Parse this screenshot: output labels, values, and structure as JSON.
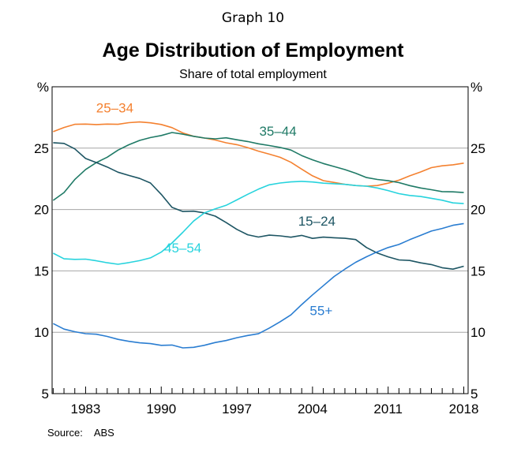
{
  "header": {
    "graph_number": "Graph 10",
    "title": "Age Distribution of Employment",
    "subtitle": "Share of total employment"
  },
  "source": {
    "label": "Source:",
    "value": "ABS"
  },
  "chart_data": {
    "type": "line",
    "title": "Age Distribution of Employment",
    "subtitle": "Share of total employment",
    "xlabel": "",
    "ylabel": "%",
    "y2label": "%",
    "xlim": [
      1979.9,
      2018.4
    ],
    "ylim": [
      5,
      30
    ],
    "x_ticks": [
      1983,
      1990,
      1997,
      2004,
      2011,
      2018
    ],
    "x_tick_labels": [
      "1983",
      "1990",
      "1997",
      "2004",
      "2011",
      "2018"
    ],
    "y_ticks": [
      5,
      10,
      15,
      20,
      25
    ],
    "y_tick_labels": [
      "5",
      "10",
      "15",
      "20",
      "25"
    ],
    "grid": true,
    "colors": {
      "25-34": "#f48130",
      "35-44": "#1f7a66",
      "15-24": "#1d5563",
      "45-54": "#27d3dd",
      "55+": "#2a7dd1"
    },
    "series": [
      {
        "name": "25–34",
        "x": [
          1980,
          1981,
          1982,
          1983,
          1984,
          1985,
          1986,
          1987,
          1988,
          1989,
          1990,
          1991,
          1992,
          1993,
          1994,
          1995,
          1996,
          1997,
          1998,
          1999,
          2000,
          2001,
          2002,
          2003,
          2004,
          2005,
          2006,
          2007,
          2008,
          2009,
          2010,
          2011,
          2012,
          2013,
          2014,
          2015,
          2016,
          2017,
          2018
        ],
        "values": [
          26.4,
          26.7,
          26.9,
          26.9,
          26.9,
          27.0,
          27.0,
          27.1,
          27.1,
          27.0,
          26.9,
          26.7,
          26.3,
          26.0,
          25.8,
          25.6,
          25.4,
          25.3,
          25.1,
          24.8,
          24.5,
          24.2,
          23.8,
          23.3,
          22.8,
          22.4,
          22.2,
          22.0,
          21.9,
          21.9,
          22.0,
          22.2,
          22.4,
          22.7,
          23.0,
          23.4,
          23.6,
          23.7,
          23.8
        ]
      },
      {
        "name": "35–44",
        "x": [
          1980,
          1981,
          1982,
          1983,
          1984,
          1985,
          1986,
          1987,
          1988,
          1989,
          1990,
          1991,
          1992,
          1993,
          1994,
          1995,
          1996,
          1997,
          1998,
          1999,
          2000,
          2001,
          2002,
          2003,
          2004,
          2005,
          2006,
          2007,
          2008,
          2009,
          2010,
          2011,
          2012,
          2013,
          2014,
          2015,
          2016,
          2017,
          2018
        ],
        "values": [
          20.8,
          21.4,
          22.4,
          23.2,
          23.8,
          24.3,
          24.9,
          25.3,
          25.6,
          25.8,
          26.0,
          26.3,
          26.2,
          26.0,
          25.8,
          25.7,
          25.8,
          25.7,
          25.6,
          25.4,
          25.2,
          25.0,
          24.8,
          24.4,
          24.1,
          23.8,
          23.5,
          23.2,
          22.9,
          22.6,
          22.5,
          22.4,
          22.2,
          21.9,
          21.7,
          21.6,
          21.5,
          21.5,
          21.4
        ]
      },
      {
        "name": "15–24",
        "x": [
          1980,
          1981,
          1982,
          1983,
          1984,
          1985,
          1986,
          1987,
          1988,
          1989,
          1990,
          1991,
          1992,
          1993,
          1994,
          1995,
          1996,
          1997,
          1998,
          1999,
          2000,
          2001,
          2002,
          2003,
          2004,
          2005,
          2006,
          2007,
          2008,
          2009,
          2010,
          2011,
          2012,
          2013,
          2014,
          2015,
          2016,
          2017,
          2018
        ],
        "values": [
          25.5,
          25.4,
          24.9,
          24.1,
          23.8,
          23.5,
          23.1,
          22.8,
          22.5,
          22.1,
          21.2,
          20.2,
          19.9,
          19.9,
          19.7,
          19.4,
          18.9,
          18.4,
          18.0,
          17.8,
          17.9,
          17.8,
          17.7,
          17.9,
          17.7,
          17.8,
          17.7,
          17.6,
          17.5,
          16.9,
          16.5,
          16.2,
          15.9,
          15.8,
          15.6,
          15.5,
          15.3,
          15.2,
          15.4
        ]
      },
      {
        "name": "45–54",
        "x": [
          1980,
          1981,
          1982,
          1983,
          1984,
          1985,
          1986,
          1987,
          1988,
          1989,
          1990,
          1991,
          1992,
          1993,
          1994,
          1995,
          1996,
          1997,
          1998,
          1999,
          2000,
          2001,
          2002,
          2003,
          2004,
          2005,
          2006,
          2007,
          2008,
          2009,
          2010,
          2011,
          2012,
          2013,
          2014,
          2015,
          2016,
          2017,
          2018
        ],
        "values": [
          16.5,
          16.0,
          15.9,
          15.9,
          15.8,
          15.7,
          15.6,
          15.7,
          15.8,
          16.0,
          16.5,
          17.3,
          18.2,
          19.1,
          19.7,
          20.0,
          20.3,
          20.8,
          21.3,
          21.7,
          22.0,
          22.1,
          22.2,
          22.3,
          22.3,
          22.2,
          22.1,
          22.0,
          21.9,
          21.9,
          21.8,
          21.6,
          21.3,
          21.1,
          21.0,
          20.9,
          20.8,
          20.6,
          20.5
        ]
      },
      {
        "name": "55+",
        "x": [
          1980,
          1981,
          1982,
          1983,
          1984,
          1985,
          1986,
          1987,
          1988,
          1989,
          1990,
          1991,
          1992,
          1993,
          1994,
          1995,
          1996,
          1997,
          1998,
          1999,
          2000,
          2001,
          2002,
          2003,
          2004,
          2005,
          2006,
          2007,
          2008,
          2009,
          2010,
          2011,
          2012,
          2013,
          2014,
          2015,
          2016,
          2017,
          2018
        ],
        "values": [
          10.7,
          10.3,
          10.1,
          9.9,
          9.8,
          9.6,
          9.4,
          9.3,
          9.2,
          9.1,
          8.9,
          8.9,
          8.7,
          8.8,
          9.0,
          9.2,
          9.3,
          9.5,
          9.7,
          9.9,
          10.4,
          10.9,
          11.4,
          12.2,
          13.0,
          13.8,
          14.6,
          15.2,
          15.7,
          16.1,
          16.5,
          16.9,
          17.2,
          17.6,
          17.9,
          18.2,
          18.4,
          18.7,
          18.9
        ]
      }
    ],
    "series_labels": [
      {
        "name": "25–34",
        "text": "25–34",
        "at": [
          1985.7,
          27.9
        ]
      },
      {
        "name": "35–44",
        "text": "35–44",
        "at": [
          2000.8,
          26.0
        ]
      },
      {
        "name": "15–24",
        "text": "15–24",
        "at": [
          2004.4,
          18.7
        ]
      },
      {
        "name": "45–54",
        "text": "45–54",
        "at": [
          1992.0,
          16.5
        ]
      },
      {
        "name": "55+",
        "text": "55+",
        "at": [
          2004.8,
          11.4
        ]
      }
    ]
  }
}
